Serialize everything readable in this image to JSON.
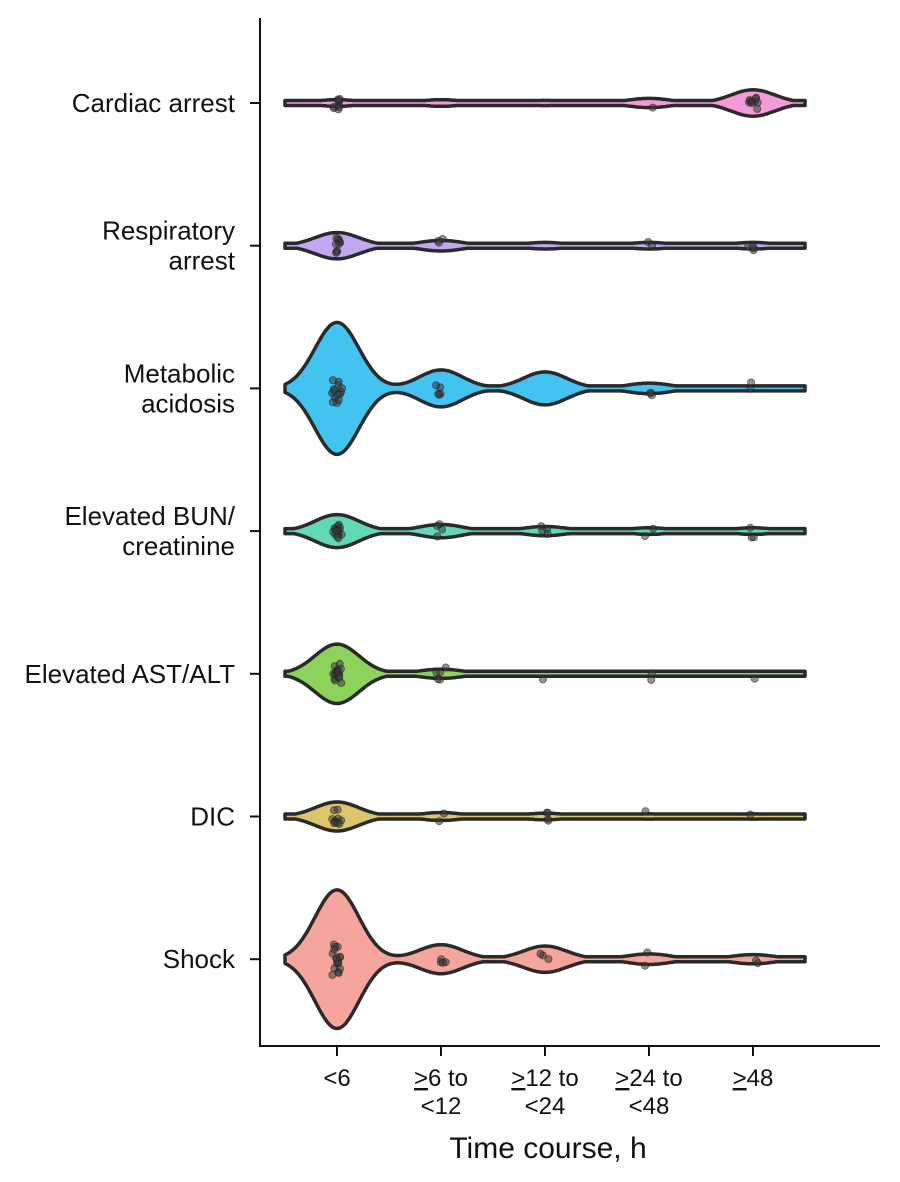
{
  "chart_data": {
    "type": "violin",
    "title": "",
    "xlabel": "Time course, h",
    "ylabel": "",
    "x_categories": [
      {
        "id": "lt6",
        "lines": [
          {
            "text": "<6"
          }
        ]
      },
      {
        "id": "6to12",
        "lines": [
          {
            "text": "6 to",
            "prefix": ">"
          },
          {
            "text": "<12"
          }
        ]
      },
      {
        "id": "12to24",
        "lines": [
          {
            "text": "12 to",
            "prefix": ">"
          },
          {
            "text": "<24"
          }
        ]
      },
      {
        "id": "24to48",
        "lines": [
          {
            "text": "24 to",
            "prefix": ">"
          },
          {
            "text": "<48"
          }
        ]
      },
      {
        "id": "ge48",
        "lines": [
          {
            "text": "48",
            "prefix": ">"
          }
        ]
      }
    ],
    "grid": false,
    "legend": "none",
    "series": [
      {
        "category_lines": [
          "Cardiac arrest"
        ],
        "color": "#f59ad8",
        "density": [
          0.05,
          0.05,
          0.04,
          0.07,
          0.2
        ],
        "counts": [
          9,
          0,
          0,
          1,
          10
        ]
      },
      {
        "category_lines": [
          "Respiratory",
          "arrest"
        ],
        "color": "#c2a8f2",
        "density": [
          0.2,
          0.08,
          0.05,
          0.05,
          0.05
        ],
        "counts": [
          10,
          3,
          0,
          2,
          4
        ]
      },
      {
        "category_lines": [
          "Metabolic",
          "acidosis"
        ],
        "color": "#43c4f0",
        "density": [
          1.0,
          0.28,
          0.25,
          0.08,
          0.0
        ],
        "counts": [
          14,
          5,
          0,
          3,
          2
        ]
      },
      {
        "category_lines": [
          "Elevated BUN/",
          "creatinine"
        ],
        "color": "#62d8b8",
        "density": [
          0.25,
          0.1,
          0.07,
          0.05,
          0.05
        ],
        "counts": [
          14,
          4,
          4,
          2,
          3
        ]
      },
      {
        "category_lines": [
          "Elevated AST/ALT"
        ],
        "color": "#8ed25e",
        "density": [
          0.45,
          0.07,
          0.02,
          0.02,
          0.02
        ],
        "counts": [
          16,
          5,
          1,
          2,
          1
        ]
      },
      {
        "category_lines": [
          "DIC"
        ],
        "color": "#dcc56a",
        "density": [
          0.22,
          0.06,
          0.05,
          0.04,
          0.04
        ],
        "counts": [
          10,
          2,
          4,
          1,
          1
        ]
      },
      {
        "category_lines": [
          "Shock"
        ],
        "color": "#f5a59c",
        "density": [
          1.05,
          0.22,
          0.2,
          0.08,
          0.07
        ],
        "counts": [
          17,
          4,
          3,
          2,
          2
        ]
      }
    ]
  }
}
